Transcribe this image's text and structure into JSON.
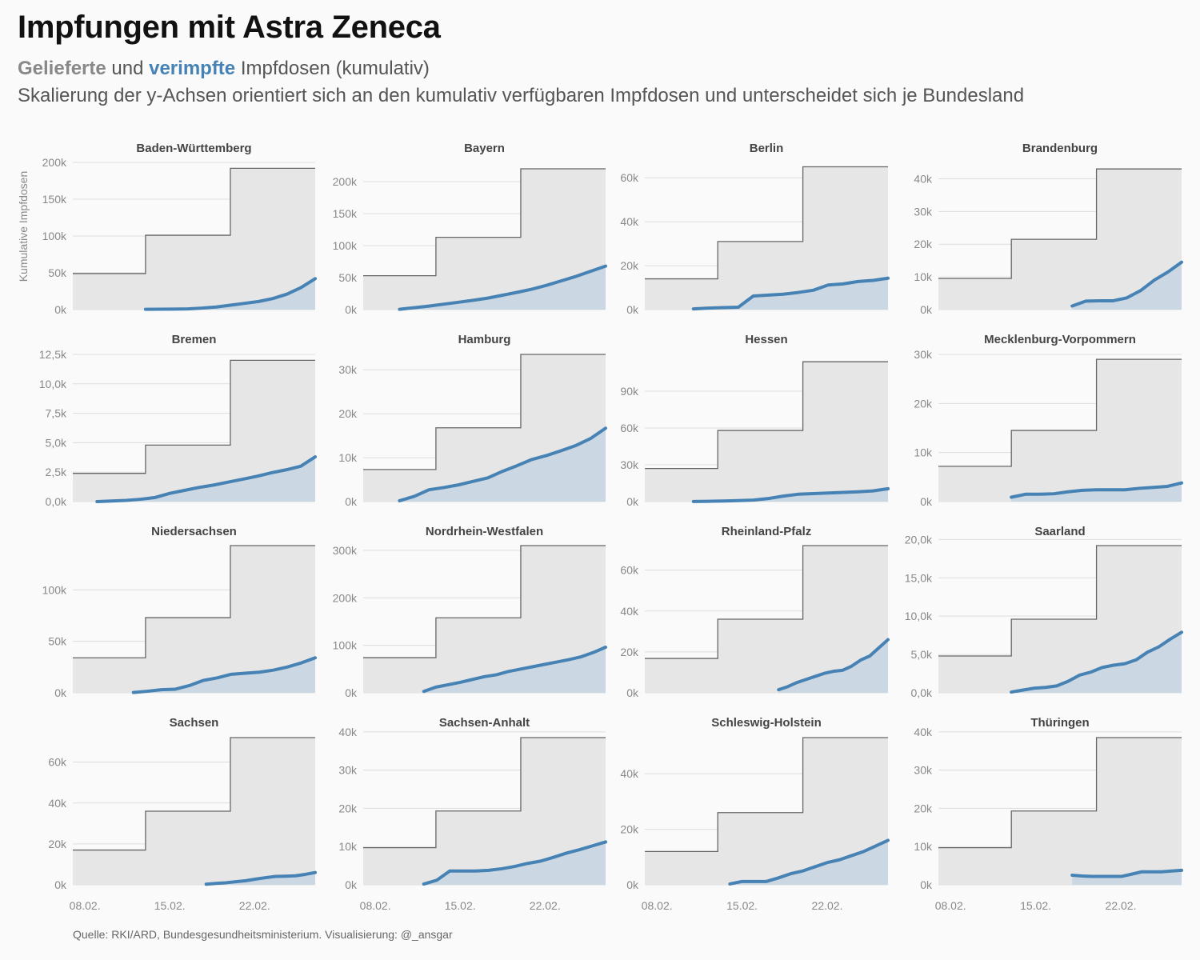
{
  "title": "Impfungen mit Astra Zeneca",
  "subtitle": {
    "delivered": "Gelieferte",
    "und": "und",
    "vaccinated": "verimpfte",
    "rest": "Impfdosen (kumulativ)"
  },
  "subtitle2": "Skalierung der y-Achsen orientiert sich an den kumulativ verfügbaren Impfdosen und unterscheidet sich je Bundesland",
  "caption": "Quelle: RKI/ARD, Bundesgesundheitsministerium. Visualisierung: @_ansgar",
  "colors": {
    "delivered_fill": "#e6e6e6",
    "delivered_line": "#666666",
    "vaccinated_line": "#4682b4",
    "vaccinated_fill": "#c5d3e0",
    "grid": "#dddddd"
  },
  "chart_data": {
    "type": "area",
    "ylabel": "Kumulative Impfdosen",
    "x_ticks": [
      "08.02.",
      "15.02.",
      "22.02."
    ],
    "facets": [
      {
        "name": "Baden-Württemberg",
        "y_ticks": [
          "0k",
          "50k",
          "100k",
          "150k",
          "200k"
        ],
        "y_tick_values": [
          0,
          50000,
          100000,
          150000,
          200000
        ],
        "ymax": 200000,
        "delivered_steps": [
          49000,
          101000,
          192000
        ],
        "vaccinated_start_day": 6,
        "vaccinated": [
          400,
          500,
          700,
          1000,
          2000,
          3500,
          6000,
          8500,
          11000,
          15000,
          21000,
          30000,
          42000
        ]
      },
      {
        "name": "Bayern",
        "y_ticks": [
          "0k",
          "50k",
          "100k",
          "150k",
          "200k"
        ],
        "y_tick_values": [
          0,
          50000,
          100000,
          150000,
          200000
        ],
        "ymax": 230000,
        "delivered_steps": [
          53000,
          113000,
          220000
        ],
        "vaccinated_start_day": 3,
        "vaccinated": [
          500,
          3000,
          5500,
          8500,
          11500,
          14500,
          18000,
          22500,
          27000,
          32000,
          38000,
          45000,
          52000,
          60000,
          68000
        ]
      },
      {
        "name": "Berlin",
        "y_ticks": [
          "0k",
          "20k",
          "40k",
          "60k"
        ],
        "y_tick_values": [
          0,
          20000,
          40000,
          60000
        ],
        "ymax": 67000,
        "delivered_steps": [
          14000,
          31000,
          65000
        ],
        "vaccinated_start_day": 4,
        "vaccinated": [
          300,
          700,
          900,
          1100,
          6200,
          6600,
          7000,
          7800,
          8800,
          11200,
          11700,
          12800,
          13300,
          14300
        ]
      },
      {
        "name": "Brandenburg",
        "y_ticks": [
          "0k",
          "10k",
          "20k",
          "30k",
          "40k"
        ],
        "y_tick_values": [
          0,
          10000,
          20000,
          30000,
          40000
        ],
        "ymax": 45000,
        "delivered_steps": [
          9500,
          21500,
          43000
        ],
        "vaccinated_start_day": 11,
        "vaccinated": [
          1100,
          2600,
          2700,
          2700,
          3600,
          5800,
          9000,
          11500,
          14500
        ]
      },
      {
        "name": "Bremen",
        "y_ticks": [
          "0,0k",
          "2,5k",
          "5,0k",
          "7,5k",
          "10,0k",
          "12,5k"
        ],
        "y_tick_values": [
          0,
          2500,
          5000,
          7500,
          10000,
          12500
        ],
        "ymax": 12500,
        "delivered_steps": [
          2400,
          4800,
          12000
        ],
        "vaccinated_start_day": 2,
        "vaccinated": [
          0,
          50,
          100,
          200,
          350,
          700,
          950,
          1200,
          1400,
          1650,
          1900,
          2150,
          2450,
          2700,
          3000,
          3800
        ]
      },
      {
        "name": "Hamburg",
        "y_ticks": [
          "0k",
          "10k",
          "20k",
          "30k"
        ],
        "y_tick_values": [
          0,
          10000,
          20000,
          30000
        ],
        "ymax": 33500,
        "delivered_steps": [
          7300,
          16800,
          33500
        ],
        "vaccinated_start_day": 3,
        "vaccinated": [
          200,
          1200,
          2700,
          3200,
          3800,
          4600,
          5400,
          6900,
          8200,
          9600,
          10500,
          11600,
          12800,
          14400,
          16700
        ]
      },
      {
        "name": "Hessen",
        "y_ticks": [
          "0k",
          "30k",
          "60k",
          "90k"
        ],
        "y_tick_values": [
          0,
          30000,
          60000,
          90000
        ],
        "ymax": 120000,
        "delivered_steps": [
          27000,
          58000,
          114000
        ],
        "vaccinated_start_day": 4,
        "vaccinated": [
          100,
          250,
          500,
          800,
          1200,
          2500,
          4500,
          6000,
          6500,
          7000,
          7500,
          8000,
          8700,
          10500
        ]
      },
      {
        "name": "Mecklenburg-Vorpommern",
        "y_ticks": [
          "0k",
          "10k",
          "20k",
          "30k"
        ],
        "y_tick_values": [
          0,
          10000,
          20000,
          30000
        ],
        "ymax": 30000,
        "delivered_steps": [
          7200,
          14500,
          29000
        ],
        "vaccinated_start_day": 6,
        "vaccinated": [
          900,
          1500,
          1500,
          1600,
          2000,
          2300,
          2400,
          2400,
          2400,
          2700,
          2900,
          3100,
          3800
        ]
      },
      {
        "name": "Niedersachsen",
        "y_ticks": [
          "0k",
          "50k",
          "100k"
        ],
        "y_tick_values": [
          0,
          50000,
          100000
        ],
        "ymax": 143000,
        "delivered_steps": [
          34000,
          73000,
          143000
        ],
        "vaccinated_start_day": 5,
        "vaccinated": [
          300,
          1500,
          3000,
          3500,
          7000,
          12000,
          14500,
          18000,
          19000,
          20000,
          22000,
          25000,
          29000,
          34000
        ]
      },
      {
        "name": "Nordrhein-Westfalen",
        "y_ticks": [
          "0k",
          "100k",
          "200k",
          "300k"
        ],
        "y_tick_values": [
          0,
          100000,
          200000,
          300000
        ],
        "ymax": 310000,
        "delivered_steps": [
          74000,
          158000,
          310000
        ],
        "vaccinated_start_day": 5,
        "vaccinated": [
          3000,
          12000,
          17000,
          22000,
          28000,
          34000,
          38000,
          45000,
          50000,
          55000,
          60000,
          65000,
          70000,
          76000,
          85000,
          96000
        ]
      },
      {
        "name": "Rheinland-Pfalz",
        "y_ticks": [
          "0k",
          "20k",
          "40k",
          "60k"
        ],
        "y_tick_values": [
          0,
          20000,
          40000,
          60000
        ],
        "ymax": 72000,
        "delivered_steps": [
          16800,
          36000,
          72000
        ],
        "vaccinated_start_day": 11,
        "vaccinated": [
          1500,
          3000,
          5000,
          6500,
          8000,
          9500,
          10500,
          11000,
          13000,
          16000,
          18000,
          22000,
          26000
        ]
      },
      {
        "name": "Saarland",
        "y_ticks": [
          "0,0k",
          "5,0k",
          "10,0k",
          "15,0k",
          "20,0k"
        ],
        "y_tick_values": [
          0,
          5000,
          10000,
          15000,
          20000
        ],
        "ymax": 19200,
        "delivered_steps": [
          4800,
          9600,
          19200
        ],
        "vaccinated_start_day": 6,
        "vaccinated": [
          100,
          350,
          600,
          700,
          900,
          1500,
          2300,
          2700,
          3300,
          3600,
          3800,
          4300,
          5300,
          6000,
          7000,
          7900
        ]
      },
      {
        "name": "Sachsen",
        "y_ticks": [
          "0k",
          "20k",
          "40k",
          "60k"
        ],
        "y_tick_values": [
          0,
          20000,
          40000,
          60000
        ],
        "ymax": 72000,
        "delivered_steps": [
          17000,
          36000,
          72000
        ],
        "vaccinated_start_day": 11,
        "vaccinated": [
          300,
          700,
          1000,
          1500,
          2000,
          2800,
          3500,
          4100,
          4200,
          4400,
          5100,
          6000
        ]
      },
      {
        "name": "Sachsen-Anhalt",
        "y_ticks": [
          "0k",
          "10k",
          "20k",
          "30k",
          "40k"
        ],
        "y_tick_values": [
          0,
          10000,
          20000,
          30000,
          40000
        ],
        "ymax": 38500,
        "delivered_steps": [
          9700,
          19300,
          38500
        ],
        "vaccinated_start_day": 5,
        "vaccinated": [
          200,
          1200,
          3600,
          3600,
          3600,
          3800,
          4200,
          4800,
          5600,
          6200,
          7200,
          8300,
          9200,
          10200,
          11200
        ]
      },
      {
        "name": "Schleswig-Holstein",
        "y_ticks": [
          "0k",
          "20k",
          "40k"
        ],
        "y_tick_values": [
          0,
          20000,
          40000
        ],
        "ymax": 53000,
        "delivered_steps": [
          12000,
          26000,
          53000
        ],
        "vaccinated_start_day": 7,
        "vaccinated": [
          300,
          1200,
          1200,
          1200,
          2500,
          4000,
          5000,
          6500,
          8000,
          9000,
          10500,
          12000,
          14000,
          16000
        ]
      },
      {
        "name": "Thüringen",
        "y_ticks": [
          "0k",
          "10k",
          "20k",
          "30k",
          "40k"
        ],
        "y_tick_values": [
          0,
          10000,
          20000,
          30000,
          40000
        ],
        "ymax": 38500,
        "delivered_steps": [
          9700,
          19300,
          38500
        ],
        "vaccinated_start_day": 11,
        "vaccinated": [
          2500,
          2300,
          2200,
          2200,
          2200,
          2200,
          2800,
          3400,
          3400,
          3400,
          3600,
          3800
        ]
      }
    ]
  }
}
